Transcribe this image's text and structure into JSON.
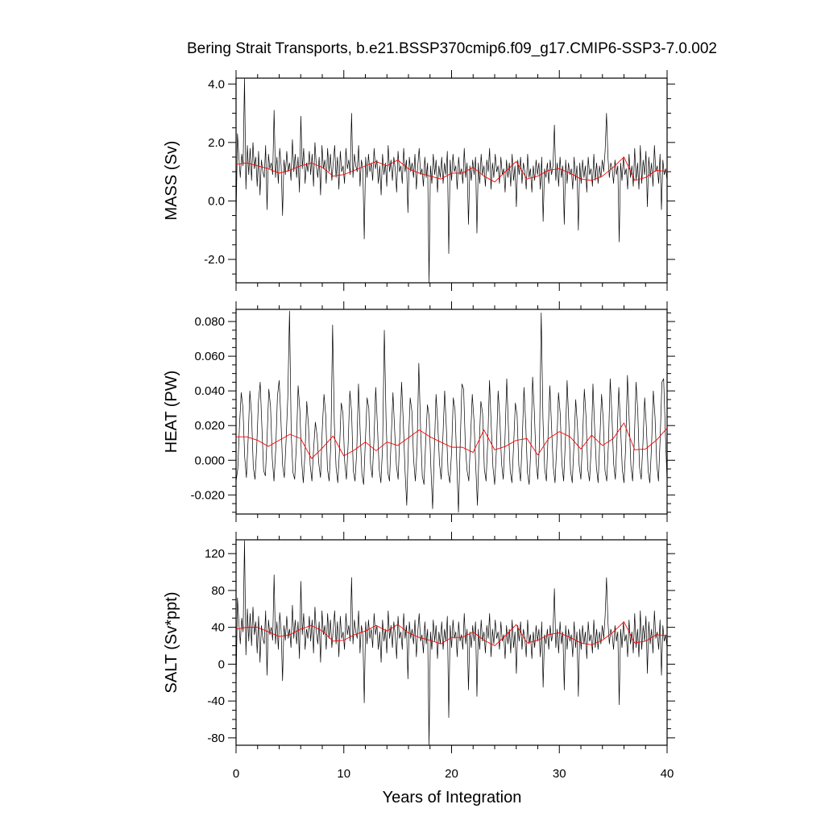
{
  "title": "Bering Strait Transports, b.e21.BSSP370cmip6.f09_g17.CMIP6-SSP3-7.0.002",
  "xlabel": "Years of Integration",
  "colors": {
    "monthly": "#000000",
    "annual": "#ff0000"
  },
  "chart_data": [
    {
      "type": "line",
      "title": "",
      "ylabel": "MASS (Sv)",
      "xlim": [
        0,
        40
      ],
      "ylim": [
        -2.8,
        4.2
      ],
      "xticks": [
        "0",
        "10",
        "20",
        "30",
        "40"
      ],
      "yticks": [
        {
          "v": -2.0,
          "label": "-2.0"
        },
        {
          "v": 0.0,
          "label": "0.0"
        },
        {
          "v": 2.0,
          "label": "2.0"
        },
        {
          "v": 4.0,
          "label": "4.0"
        }
      ],
      "series": [
        {
          "key": "monthly",
          "values": [
            -0.7,
            2.3,
            1.5,
            0.8,
            1.6,
            1.2,
            4.2,
            0.4,
            1.9,
            0.9,
            1.8,
            0.7,
            2.0,
            1.1,
            1.5,
            0.5,
            1.7,
            0.2,
            1.4,
            1.0,
            0.8,
            1.9,
            -0.3,
            1.6,
            1.1,
            1.3,
            0.9,
            3.1,
            0.8,
            1.5,
            0.6,
            1.8,
            1.2,
            -0.5,
            1.4,
            0.9,
            1.7,
            1.0,
            1.3,
            0.7,
            2.1,
            1.0,
            1.6,
            0.8,
            1.5,
            0.3,
            2.9,
            1.1,
            1.8,
            0.6,
            1.3,
            1.0,
            1.7,
            0.9,
            1.6,
            0.5,
            2.0,
            1.2,
            0.8,
            1.5,
            0.2,
            1.9,
            1.1,
            1.4,
            0.6,
            1.8,
            1.0,
            1.6,
            0.7,
            1.3,
            1.9,
            0.8,
            1.5,
            0.4,
            1.7,
            1.0,
            1.2,
            0.6,
            1.8,
            1.1,
            1.4,
            0.9,
            3.0,
            0.8,
            1.6,
            1.2,
            1.0,
            1.9,
            0.5,
            1.4,
            1.1,
            -1.3,
            1.5,
            0.8,
            1.6,
            1.0,
            1.3,
            0.7,
            1.8,
            1.1,
            1.4,
            0.6,
            1.2,
            0.2,
            1.6,
            0.9,
            1.3,
            0.5,
            1.9,
            1.0,
            1.4,
            0.7,
            1.5,
            1.1,
            0.3,
            1.7,
            1.0,
            1.2,
            0.6,
            1.8,
            1.0,
            1.4,
            -0.4,
            1.5,
            1.0,
            1.3,
            0.8,
            1.6,
            0.4,
            1.2,
            1.8,
            0.9,
            1.1,
            0.5,
            1.5,
            0.8,
            1.3,
            -2.8,
            1.2,
            0.6,
            1.6,
            0.9,
            1.4,
            0.3,
            1.2,
            0.8,
            1.5,
            0.6,
            1.3,
            0.9,
            1.7,
            -1.8,
            1.4,
            0.7,
            1.6,
            1.0,
            1.2,
            0.4,
            1.5,
            0.9,
            1.1,
            0.6,
            1.8,
            0.8,
            1.3,
            -0.8,
            1.2,
            0.7,
            1.4,
            0.9,
            1.5,
            -1.1,
            1.3,
            0.6,
            1.6,
            0.9,
            1.2,
            0.5,
            1.4,
            1.0,
            1.8,
            0.4,
            1.3,
            0.8,
            1.6,
            1.0,
            1.2,
            0.6,
            1.5,
            0.9,
            1.1,
            0.3,
            1.4,
            0.8,
            1.3,
            0.5,
            1.6,
            0.7,
            1.2,
            -0.2,
            1.4,
            0.9,
            1.5,
            0.6,
            1.3,
            1.0,
            0.4,
            1.6,
            0.8,
            1.1,
            0.3,
            1.2,
            0.7,
            1.4,
            0.9,
            1.3,
            0.4,
            1.5,
            -0.7,
            1.1,
            0.8,
            1.3,
            0.6,
            1.4,
            0.9,
            1.2,
            2.6,
            0.7,
            1.3,
            0.5,
            1.5,
            0.8,
            1.2,
            -0.8,
            1.4,
            0.6,
            1.3,
            0.9,
            1.1,
            0.4,
            1.5,
            0.7,
            1.2,
            -1.0,
            1.3,
            0.6,
            1.4,
            0.8,
            1.2,
            0.3,
            1.5,
            0.9,
            1.1,
            0.5,
            1.6,
            0.7,
            1.3,
            0.6,
            1.2,
            0.8,
            1.4,
            1.0,
            1.7,
            3.0,
            1.5,
            0.8,
            1.3,
            1.1,
            0.6,
            1.4,
            0.9,
            1.2,
            -1.4,
            1.3,
            0.7,
            1.5,
            0.9,
            1.1,
            0.4,
            1.6,
            0.8,
            1.2,
            0.5,
            1.8,
            0.7,
            1.3,
            0.4,
            1.9,
            0.6,
            1.4,
            0.9,
            1.7,
            -0.2,
            1.5,
            0.8,
            1.3,
            0.5,
            1.9,
            1.0,
            1.2,
            0.6,
            1.6,
            -0.3,
            1.4,
            0.9,
            1.1,
            0.7
          ]
        },
        {
          "key": "annual",
          "values": [
            1.25,
            1.3,
            1.2,
            1.1,
            0.95,
            1.05,
            1.2,
            1.3,
            1.15,
            0.85,
            0.9,
            1.05,
            1.2,
            1.35,
            1.2,
            1.4,
            1.1,
            0.95,
            0.85,
            0.75,
            0.95,
            0.95,
            1.15,
            0.85,
            0.65,
            1.0,
            1.35,
            0.75,
            0.85,
            1.05,
            1.1,
            0.95,
            0.75,
            0.7,
            0.85,
            1.15,
            1.5,
            0.7,
            0.8,
            1.05,
            1.0
          ]
        }
      ]
    },
    {
      "type": "line",
      "title": "",
      "ylabel": "HEAT (PW)",
      "xlim": [
        0,
        40
      ],
      "ylim": [
        -0.031,
        0.087
      ],
      "xticks": [
        "0",
        "10",
        "20",
        "30",
        "40"
      ],
      "yticks": [
        {
          "v": -0.02,
          "label": "-0.020"
        },
        {
          "v": 0.0,
          "label": "0.000"
        },
        {
          "v": 0.02,
          "label": "0.020"
        },
        {
          "v": 0.04,
          "label": "0.040"
        },
        {
          "v": 0.06,
          "label": "0.060"
        },
        {
          "v": 0.08,
          "label": "0.080"
        }
      ],
      "series": [
        {
          "key": "monthly",
          "values": [
            -0.012,
            -0.005,
            0.02,
            0.039,
            0.03,
            0.002,
            -0.01,
            0.012,
            0.04,
            0.026,
            -0.004,
            -0.011,
            0.008,
            0.034,
            0.045,
            0.019,
            -0.006,
            -0.009,
            0.013,
            0.041,
            0.031,
            0.001,
            -0.012,
            0.006,
            0.037,
            0.046,
            0.024,
            -0.003,
            -0.01,
            0.011,
            0.036,
            0.086,
            0.015,
            -0.007,
            -0.011,
            0.009,
            0.043,
            0.029,
            0.0,
            -0.013,
            0.004,
            0.034,
            0.02,
            -0.003,
            -0.012,
            0.007,
            0.022,
            0.014,
            -0.002,
            -0.01,
            0.018,
            0.038,
            0.026,
            -0.005,
            -0.012,
            0.01,
            0.078,
            0.021,
            -0.004,
            -0.013,
            0.006,
            0.033,
            0.027,
            -0.001,
            -0.011,
            0.009,
            0.04,
            0.028,
            -0.006,
            -0.012,
            0.005,
            0.044,
            0.016,
            -0.008,
            -0.014,
            0.011,
            0.036,
            0.03,
            -0.002,
            -0.01,
            0.012,
            0.042,
            0.02,
            -0.005,
            -0.013,
            0.008,
            0.075,
            0.024,
            -0.007,
            -0.012,
            0.013,
            0.039,
            0.017,
            -0.003,
            -0.011,
            0.015,
            0.045,
            0.022,
            -0.006,
            -0.026,
            0.01,
            0.036,
            0.028,
            0.0,
            -0.012,
            0.007,
            0.056,
            0.019,
            -0.009,
            -0.014,
            0.011,
            0.032,
            0.025,
            -0.004,
            -0.028,
            0.006,
            0.038,
            0.021,
            -0.002,
            -0.011,
            0.014,
            0.04,
            0.018,
            -0.007,
            -0.013,
            0.005,
            0.036,
            0.029,
            -0.001,
            -0.03,
            0.009,
            0.044,
            0.041,
            0.008,
            -0.006,
            -0.012,
            0.012,
            0.038,
            0.023,
            -0.003,
            -0.026,
            0.008,
            0.034,
            0.027,
            -0.005,
            -0.012,
            0.011,
            0.046,
            0.02,
            -0.004,
            -0.014,
            0.006,
            0.04,
            0.024,
            -0.002,
            -0.011,
            0.013,
            0.047,
            0.018,
            -0.006,
            -0.013,
            0.009,
            0.033,
            0.026,
            -0.003,
            -0.012,
            0.012,
            0.042,
            0.021,
            -0.007,
            -0.014,
            0.007,
            0.048,
            0.028,
            0.0,
            -0.011,
            0.01,
            0.085,
            0.024,
            -0.005,
            -0.012,
            0.015,
            0.043,
            0.019,
            -0.004,
            -0.013,
            0.008,
            0.039,
            0.027,
            -0.002,
            -0.012,
            0.011,
            0.046,
            0.022,
            -0.006,
            -0.013,
            0.009,
            0.035,
            0.02,
            -0.003,
            -0.011,
            0.013,
            0.041,
            0.025,
            -0.005,
            -0.012,
            0.007,
            0.044,
            0.018,
            -0.004,
            -0.013,
            0.012,
            0.038,
            0.023,
            -0.006,
            -0.012,
            0.01,
            0.047,
            0.026,
            -0.002,
            -0.011,
            0.014,
            0.042,
            0.02,
            -0.005,
            -0.013,
            0.008,
            0.049,
            0.024,
            -0.003,
            -0.012,
            0.012,
            0.045,
            0.028,
            -0.004,
            -0.011,
            0.01,
            0.036,
            0.019,
            -0.006,
            -0.013,
            0.009,
            0.04,
            0.025,
            -0.002,
            -0.012,
            0.013,
            0.045,
            0.047,
            0.016,
            -0.012
          ]
        },
        {
          "key": "annual",
          "values": [
            0.0135,
            0.0135,
            0.0115,
            0.008,
            0.0115,
            0.015,
            0.0125,
            0.001,
            0.007,
            0.014,
            0.0025,
            0.006,
            0.0105,
            0.0055,
            0.0105,
            0.0085,
            0.013,
            0.0175,
            0.0135,
            0.0105,
            0.0075,
            0.0075,
            0.0045,
            0.0175,
            0.006,
            0.008,
            0.0115,
            0.0125,
            0.003,
            0.0125,
            0.0165,
            0.0135,
            0.0065,
            0.0145,
            0.0085,
            0.0125,
            0.0215,
            0.006,
            0.0065,
            0.0115,
            0.0185
          ]
        }
      ]
    },
    {
      "type": "line",
      "title": "",
      "ylabel": "SALT (Sv*ppt)",
      "xlim": [
        0,
        40
      ],
      "ylim": [
        -88,
        135
      ],
      "xticks": [
        "0",
        "10",
        "20",
        "30",
        "40"
      ],
      "yticks": [
        {
          "v": -80,
          "label": "-80"
        },
        {
          "v": -40,
          "label": "-40"
        },
        {
          "v": 0,
          "label": "0"
        },
        {
          "v": 40,
          "label": "40"
        },
        {
          "v": 80,
          "label": "80"
        },
        {
          "v": 120,
          "label": "120"
        }
      ],
      "series": [
        {
          "key": "monthly",
          "values": [
            -25,
            72,
            45,
            22,
            50,
            35,
            134,
            10,
            60,
            25,
            55,
            20,
            62,
            32,
            46,
            12,
            52,
            2,
            42,
            28,
            22,
            58,
            -12,
            48,
            32,
            40,
            26,
            97,
            22,
            46,
            16,
            56,
            36,
            -18,
            42,
            26,
            52,
            28,
            38,
            18,
            64,
            28,
            48,
            22,
            46,
            6,
            90,
            32,
            55,
            16,
            38,
            28,
            52,
            25,
            48,
            12,
            62,
            35,
            22,
            46,
            2,
            58,
            32,
            42,
            16,
            55,
            28,
            48,
            18,
            38,
            58,
            22,
            46,
            8,
            52,
            28,
            35,
            16,
            55,
            32,
            42,
            25,
            94,
            22,
            48,
            35,
            28,
            58,
            12,
            42,
            32,
            -42,
            46,
            22,
            48,
            28,
            38,
            18,
            55,
            32,
            42,
            16,
            35,
            2,
            48,
            25,
            38,
            12,
            58,
            28,
            42,
            18,
            46,
            32,
            6,
            52,
            28,
            35,
            16,
            55,
            28,
            42,
            -16,
            46,
            28,
            38,
            22,
            48,
            8,
            35,
            55,
            25,
            32,
            12,
            46,
            22,
            38,
            -88,
            35,
            16,
            48,
            25,
            42,
            6,
            35,
            22,
            46,
            16,
            38,
            25,
            52,
            -58,
            42,
            18,
            48,
            28,
            35,
            8,
            46,
            25,
            32,
            16,
            55,
            22,
            38,
            -28,
            35,
            18,
            42,
            25,
            46,
            -35,
            38,
            16,
            48,
            25,
            35,
            12,
            42,
            28,
            55,
            8,
            38,
            22,
            48,
            28,
            35,
            16,
            46,
            25,
            32,
            6,
            42,
            22,
            38,
            12,
            48,
            18,
            35,
            -10,
            42,
            25,
            46,
            16,
            38,
            28,
            8,
            48,
            22,
            32,
            6,
            35,
            18,
            42,
            25,
            38,
            8,
            46,
            -25,
            32,
            22,
            38,
            16,
            42,
            25,
            35,
            82,
            18,
            38,
            12,
            46,
            22,
            35,
            -28,
            42,
            16,
            38,
            25,
            32,
            8,
            46,
            18,
            35,
            -35,
            38,
            16,
            42,
            22,
            35,
            6,
            46,
            25,
            32,
            12,
            48,
            18,
            38,
            16,
            35,
            22,
            42,
            28,
            52,
            94,
            46,
            22,
            38,
            32,
            16,
            42,
            25,
            35,
            -44,
            38,
            18,
            46,
            25,
            32,
            8,
            48,
            22,
            35,
            12,
            55,
            18,
            38,
            8,
            58,
            16,
            42,
            25,
            52,
            -10,
            46,
            22,
            38,
            12,
            58,
            28,
            35,
            16,
            48,
            -12,
            42,
            25,
            32,
            18
          ]
        },
        {
          "key": "annual",
          "values": [
            38,
            40,
            40,
            35,
            30,
            32,
            38,
            42,
            36,
            25,
            26,
            32,
            36,
            42,
            36,
            43,
            34,
            29,
            26,
            22,
            29,
            29,
            35,
            26,
            20,
            31,
            43,
            23,
            26,
            32,
            34,
            29,
            23,
            21,
            26,
            35,
            46,
            23,
            25,
            32,
            31
          ]
        }
      ]
    }
  ]
}
